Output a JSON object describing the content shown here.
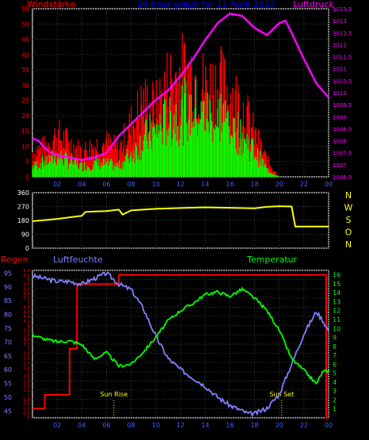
{
  "chart_data": [
    {
      "type": "line",
      "title": "24 hour graph for  11 April 2023",
      "left_label": "Windstärke",
      "right_label": "Luftdruck",
      "x_ticks": [
        "02",
        "04",
        "06",
        "08",
        "10",
        "12",
        "14",
        "16",
        "18",
        "20",
        "22",
        "00"
      ],
      "y_left_ticks": [
        "0",
        "5",
        "10",
        "15",
        "20",
        "25",
        "30",
        "35",
        "40",
        "45",
        "50",
        "55"
      ],
      "y_left_range": [
        0,
        55
      ],
      "y_right_ticks": [
        "1006,5",
        "1007",
        "1007,5",
        "1008",
        "1008,5",
        "1009",
        "1009,5",
        "1010",
        "1010,5",
        "1011",
        "1011,5",
        "1012",
        "1012,5",
        "1013",
        "1013,5"
      ],
      "y_right_range": [
        1006.5,
        1013.5
      ],
      "colors": {
        "gust": "#ff0000",
        "wind": "#00ff00",
        "pressure": "#ff00ff",
        "title": "#0000ff",
        "axis": "#ffffff"
      },
      "wind_envelope": {
        "x": [
          0,
          1,
          2,
          3,
          4,
          5,
          6,
          7,
          8,
          9,
          10,
          11,
          12,
          13,
          14,
          15,
          16,
          17,
          18,
          19,
          20,
          21,
          22,
          23,
          24
        ],
        "gust_peaks": [
          12,
          14,
          20,
          16,
          12,
          15,
          16,
          13,
          25,
          35,
          32,
          45,
          48,
          50,
          42,
          45,
          40,
          34,
          20,
          8,
          0,
          0,
          0,
          0,
          0
        ],
        "wind_mean": [
          4,
          6,
          8,
          6,
          4,
          5,
          5,
          4,
          9,
          14,
          18,
          22,
          25,
          26,
          24,
          25,
          22,
          16,
          10,
          3,
          0,
          0,
          0,
          0,
          0
        ]
      },
      "pressure": {
        "x": [
          0,
          0.5,
          1,
          1.5,
          2,
          3,
          4,
          5,
          6,
          7,
          8,
          9,
          10,
          11,
          12,
          13,
          14,
          15,
          16,
          17,
          18,
          19,
          20,
          20.5,
          21,
          22,
          23,
          24
        ],
        "y": [
          1008.1,
          1008,
          1007.7,
          1007.5,
          1007.4,
          1007.3,
          1007.2,
          1007.3,
          1007.5,
          1008.2,
          1008.7,
          1009.2,
          1009.7,
          1010.1,
          1010.7,
          1011.4,
          1012.2,
          1012.9,
          1013.3,
          1013.2,
          1012.7,
          1012.4,
          1012.9,
          1013.0,
          1012.5,
          1011.4,
          1010.4,
          1009.8
        ]
      }
    },
    {
      "type": "line",
      "title": "",
      "x_ticks": [
        "02",
        "04",
        "06",
        "08",
        "10",
        "12",
        "14",
        "16",
        "18",
        "20",
        "22",
        "00"
      ],
      "y_ticks": [
        "0",
        "90",
        "180",
        "270",
        "360"
      ],
      "y_range": [
        0,
        360
      ],
      "compass": [
        "N",
        "W",
        "S",
        "O",
        "N"
      ],
      "series": [
        {
          "x": [
            0,
            1,
            2,
            3,
            4,
            4.3,
            5,
            6,
            7,
            7.3,
            8,
            9,
            10,
            12,
            14,
            16,
            18,
            19,
            20,
            21,
            21.3,
            24
          ],
          "y": [
            175,
            182,
            190,
            200,
            210,
            235,
            238,
            240,
            250,
            218,
            245,
            250,
            255,
            260,
            265,
            262,
            258,
            268,
            272,
            270,
            140,
            140
          ],
          "color": "#ffff00"
        }
      ]
    },
    {
      "type": "line",
      "title": "",
      "labels": {
        "rain": "Regen",
        "humidity": "Luftfeuchte",
        "temperature": "Temperatur"
      },
      "x_ticks": [
        "02",
        "04",
        "06",
        "08",
        "10",
        "12",
        "14",
        "16",
        "18",
        "20",
        "22",
        "00"
      ],
      "rain_ticks": [
        "0",
        "0.2",
        "0.4",
        "0.6",
        "0.8",
        "1",
        "1.2",
        "1.4",
        "1.6",
        "1.8",
        "2",
        "2.2",
        "2.4",
        "2.6",
        "2.8",
        "3",
        "3.2",
        "3.4",
        "3.6",
        "3.8",
        "4",
        "4.2",
        "4.4",
        "4.6",
        "4.8",
        "5",
        "5.2",
        "5.4",
        "5.6",
        "5.8",
        "6",
        "6.2",
        "6.4"
      ],
      "rain_range": [
        0,
        6.4
      ],
      "humidity_ticks": [
        "45",
        "50",
        "55",
        "60",
        "65",
        "70",
        "75",
        "80",
        "85",
        "90",
        "95"
      ],
      "humidity_range": [
        42.5,
        96
      ],
      "temperature_ticks": [
        "1",
        "2",
        "3",
        "4",
        "5",
        "6",
        "7",
        "8",
        "9",
        "10",
        "11",
        "12",
        "13",
        "14",
        "15",
        "16"
      ],
      "temperature_range": [
        0,
        16.5
      ],
      "annotations": [
        {
          "label": "Sun Rise",
          "x": 6.6
        },
        {
          "label": "Sun Set",
          "x": 20.2
        }
      ],
      "colors": {
        "rain": "#ff0000",
        "humidity": "#8080ff",
        "temperature": "#00ff00",
        "annotation": "#ffff00"
      },
      "rain": {
        "x": [
          0,
          1,
          1.01,
          3,
          3.01,
          3.6,
          3.61,
          7,
          7.01,
          23.8,
          23.81,
          24
        ],
        "y": [
          0.4,
          0.4,
          1.0,
          1.0,
          3.0,
          3.0,
          5.8,
          5.8,
          6.2,
          6.2,
          0,
          0
        ]
      },
      "humidity": {
        "x": [
          0,
          1,
          2,
          3,
          4,
          5,
          6,
          6.5,
          7,
          8,
          9,
          10,
          11,
          12,
          13,
          14,
          15,
          16,
          17,
          17.5,
          18,
          19,
          20,
          21,
          22,
          23,
          23.5,
          24
        ],
        "y": [
          94,
          93,
          92,
          92,
          91,
          93,
          95,
          93,
          91,
          89,
          82,
          72,
          64,
          60,
          57,
          54,
          50,
          47,
          45,
          44,
          44,
          46,
          51,
          62,
          73,
          81,
          78,
          74
        ]
      },
      "temperature": {
        "x": [
          0,
          1,
          2,
          3,
          4,
          5,
          6,
          7,
          8,
          9,
          10,
          11,
          12,
          13,
          14,
          15,
          16,
          17,
          18,
          19,
          20,
          21,
          22,
          23,
          23.5,
          24
        ],
        "y": [
          9.3,
          8.8,
          8.5,
          8.6,
          8.2,
          6.6,
          7.3,
          5.8,
          6.0,
          7.4,
          9.0,
          10.9,
          12.0,
          12.8,
          13.8,
          14.1,
          13.6,
          14.4,
          13.4,
          12.0,
          9.8,
          6.6,
          5.3,
          3.8,
          5.1,
          5.3
        ]
      }
    }
  ]
}
